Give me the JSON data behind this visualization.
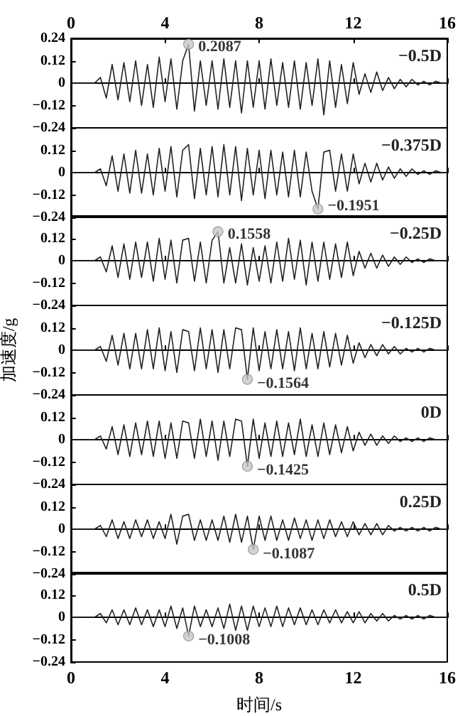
{
  "chart_data": [
    {
      "type": "line",
      "marker": "none",
      "tick_labels": "y",
      "xlim": [
        0,
        16
      ],
      "xticks": [
        0,
        4,
        8,
        12,
        16
      ],
      "x2lim": [
        0,
        16
      ],
      "x2ticks": [
        0,
        4,
        8,
        12,
        16
      ],
      "ylim": [
        -0.24,
        0.24
      ],
      "yticks": [
        {
          "value": -0.24,
          "label": "−0.24"
        },
        {
          "value": -0.12,
          "label": "−0.12"
        },
        0,
        0.12,
        0.24
      ],
      "x": [
        0,
        0.25,
        0.5,
        0.75,
        1,
        1.25,
        1.5,
        1.75,
        2,
        2.25,
        2.5,
        2.75,
        3,
        3.25,
        3.5,
        3.75,
        4,
        4.25,
        4.5,
        4.75,
        5,
        5.25,
        5.5,
        5.75,
        6,
        6.25,
        6.5,
        6.75,
        7,
        7.25,
        7.5,
        7.75,
        8,
        8.25,
        8.5,
        8.75,
        9,
        9.25,
        9.5,
        9.75,
        10,
        10.25,
        10.5,
        10.75,
        11,
        11.25,
        11.5,
        11.75,
        12,
        12.25,
        12.5,
        12.75,
        13,
        13.25,
        13.5,
        13.75,
        14,
        14.25,
        14.5,
        14.75,
        15,
        15.25,
        15.5,
        15.75,
        16
      ],
      "series": [
        {
          "name": "−0.5D",
          "color": "#222222",
          "values": [
            0,
            0,
            0,
            0,
            0,
            0.03,
            -0.08,
            0.1,
            -0.09,
            0.11,
            -0.1,
            0.12,
            -0.12,
            0.1,
            -0.13,
            0.14,
            -0.1,
            0.13,
            -0.14,
            0.12,
            0.2087,
            -0.15,
            0.12,
            -0.12,
            0.12,
            -0.14,
            0.13,
            -0.13,
            0.12,
            -0.16,
            0.12,
            -0.13,
            0.12,
            -0.14,
            0.13,
            -0.12,
            0.11,
            -0.13,
            0.12,
            -0.14,
            0.11,
            -0.12,
            0.13,
            -0.17,
            0.12,
            -0.13,
            0.1,
            -0.11,
            0.11,
            -0.06,
            0.05,
            -0.05,
            0.06,
            -0.04,
            0.03,
            -0.03,
            0.02,
            -0.02,
            0.02,
            -0.01,
            0.01,
            -0.01,
            0.01,
            0,
            0
          ]
        }
      ],
      "annotations": [
        {
          "text": "0.2087",
          "x": 5,
          "y": 0.2087
        }
      ]
    },
    {
      "type": "line",
      "marker": "none",
      "tick_labels": "y",
      "xlim": [
        0,
        16
      ],
      "xticks": [
        0,
        4,
        8,
        12,
        16
      ],
      "ylim": [
        -0.24,
        0.24
      ],
      "yticks": [
        {
          "value": -0.24,
          "label": "−0.24"
        },
        {
          "value": -0.12,
          "label": "−0.12"
        },
        0,
        0.12,
        {
          "value": 0.24,
          "label": null
        }
      ],
      "x": [
        0,
        0.25,
        0.5,
        0.75,
        1,
        1.25,
        1.5,
        1.75,
        2,
        2.25,
        2.5,
        2.75,
        3,
        3.25,
        3.5,
        3.75,
        4,
        4.25,
        4.5,
        4.75,
        5,
        5.25,
        5.5,
        5.75,
        6,
        6.25,
        6.5,
        6.75,
        7,
        7.25,
        7.5,
        7.75,
        8,
        8.25,
        8.5,
        8.75,
        9,
        9.25,
        9.5,
        9.75,
        10,
        10.25,
        10.5,
        10.75,
        11,
        11.25,
        11.5,
        11.75,
        12,
        12.25,
        12.5,
        12.75,
        13,
        13.25,
        13.5,
        13.75,
        14,
        14.25,
        14.5,
        14.75,
        15,
        15.25,
        15.5,
        15.75,
        16
      ],
      "series": [
        {
          "name": "−0.375D",
          "color": "#222222",
          "values": [
            0,
            0,
            0,
            0,
            0,
            0.02,
            -0.07,
            0.09,
            -0.1,
            0.1,
            -0.11,
            0.12,
            -0.11,
            0.1,
            -0.12,
            0.13,
            -0.1,
            0.14,
            -0.13,
            0.12,
            0.15,
            -0.14,
            0.13,
            -0.12,
            0.14,
            -0.13,
            0.15,
            -0.12,
            0.14,
            -0.15,
            0.13,
            -0.12,
            0.12,
            -0.14,
            0.12,
            -0.12,
            0.11,
            -0.13,
            0.12,
            -0.13,
            0.11,
            -0.1,
            -0.1951,
            0.11,
            0.12,
            -0.1,
            0.1,
            -0.1,
            0.1,
            -0.06,
            0.05,
            -0.05,
            0.05,
            -0.04,
            0.03,
            -0.03,
            0.02,
            -0.02,
            0.02,
            -0.01,
            0.01,
            -0.01,
            0.01,
            0,
            0
          ]
        }
      ],
      "annotations": [
        {
          "text": "−0.1951",
          "x": 10.5,
          "y": -0.1951
        }
      ]
    },
    {
      "type": "line",
      "marker": "none",
      "tick_labels": "y",
      "xlim": [
        0,
        16
      ],
      "xticks": [
        0,
        4,
        8,
        12,
        16
      ],
      "ylim": [
        -0.24,
        0.24
      ],
      "yticks": [
        {
          "value": -0.24,
          "label": "−0.24"
        },
        {
          "value": -0.12,
          "label": "−0.12"
        },
        0,
        0.12,
        {
          "value": 0.24,
          "label": null
        }
      ],
      "x": [
        0,
        0.25,
        0.5,
        0.75,
        1,
        1.25,
        1.5,
        1.75,
        2,
        2.25,
        2.5,
        2.75,
        3,
        3.25,
        3.5,
        3.75,
        4,
        4.25,
        4.5,
        4.75,
        5,
        5.25,
        5.5,
        5.75,
        6,
        6.25,
        6.5,
        6.75,
        7,
        7.25,
        7.5,
        7.75,
        8,
        8.25,
        8.5,
        8.75,
        9,
        9.25,
        9.5,
        9.75,
        10,
        10.25,
        10.5,
        10.75,
        11,
        11.25,
        11.5,
        11.75,
        12,
        12.25,
        12.5,
        12.75,
        13,
        13.25,
        13.5,
        13.75,
        14,
        14.25,
        14.5,
        14.75,
        15,
        15.25,
        15.5,
        15.75,
        16
      ],
      "series": [
        {
          "name": "−0.25D",
          "color": "#222222",
          "values": [
            0,
            0,
            0,
            0,
            0,
            0.02,
            -0.06,
            0.08,
            -0.09,
            0.09,
            -0.1,
            0.1,
            -0.09,
            0.1,
            -0.11,
            0.12,
            -0.1,
            0.11,
            -0.12,
            0.11,
            0.12,
            -0.11,
            0.1,
            -0.12,
            0.11,
            0.1558,
            -0.12,
            0.07,
            -0.12,
            0.09,
            -0.13,
            0.07,
            -0.11,
            0.08,
            -0.12,
            0.1,
            -0.11,
            0.12,
            -0.1,
            0.11,
            -0.13,
            0.1,
            -0.11,
            0.1,
            -0.1,
            0.09,
            -0.09,
            0.1,
            -0.08,
            0.05,
            -0.04,
            0.04,
            -0.04,
            0.03,
            -0.03,
            0.02,
            -0.02,
            0.02,
            -0.01,
            0.01,
            -0.01,
            0.01,
            0,
            0,
            0
          ]
        }
      ],
      "annotations": [
        {
          "text": "0.1558",
          "x": 6.25,
          "y": 0.1558
        }
      ]
    },
    {
      "type": "line",
      "marker": "none",
      "tick_labels": "y",
      "ylabel": "加速度/g",
      "xlim": [
        0,
        16
      ],
      "xticks": [
        0,
        4,
        8,
        12,
        16
      ],
      "ylim": [
        -0.24,
        0.24
      ],
      "yticks": [
        {
          "value": -0.24,
          "label": "−0.24"
        },
        {
          "value": -0.12,
          "label": "−0.12"
        },
        0,
        0.12,
        {
          "value": 0.24,
          "label": null
        }
      ],
      "x": [
        0,
        0.25,
        0.5,
        0.75,
        1,
        1.25,
        1.5,
        1.75,
        2,
        2.25,
        2.5,
        2.75,
        3,
        3.25,
        3.5,
        3.75,
        4,
        4.25,
        4.5,
        4.75,
        5,
        5.25,
        5.5,
        5.75,
        6,
        6.25,
        6.5,
        6.75,
        7,
        7.25,
        7.5,
        7.75,
        8,
        8.25,
        8.5,
        8.75,
        9,
        9.25,
        9.5,
        9.75,
        10,
        10.25,
        10.5,
        10.75,
        11,
        11.25,
        11.5,
        11.75,
        12,
        12.25,
        12.5,
        12.75,
        13,
        13.25,
        13.5,
        13.75,
        14,
        14.25,
        14.5,
        14.75,
        15,
        15.25,
        15.5,
        15.75,
        16
      ],
      "series": [
        {
          "name": "−0.125D",
          "color": "#222222",
          "values": [
            0,
            0,
            0,
            0,
            0,
            0.02,
            -0.06,
            0.08,
            -0.08,
            0.09,
            -0.1,
            0.09,
            -0.1,
            0.11,
            -0.1,
            0.12,
            -0.11,
            0.1,
            -0.12,
            0.11,
            0.1,
            -0.11,
            0.12,
            -0.1,
            0.11,
            -0.12,
            0.11,
            -0.1,
            0.12,
            0.11,
            -0.1564,
            0.12,
            -0.11,
            0.1,
            -0.1,
            0.11,
            -0.1,
            0.1,
            -0.11,
            0.12,
            -0.1,
            0.09,
            -0.1,
            0.1,
            -0.09,
            0.09,
            -0.08,
            0.08,
            -0.07,
            0.04,
            -0.04,
            0.03,
            -0.03,
            0.03,
            -0.02,
            0.02,
            -0.02,
            0.01,
            -0.01,
            0.01,
            -0.01,
            0.01,
            0,
            0,
            0
          ]
        }
      ],
      "annotations": [
        {
          "text": "−0.1564",
          "x": 7.5,
          "y": -0.1564
        }
      ]
    },
    {
      "type": "line",
      "marker": "none",
      "tick_labels": "y",
      "xlim": [
        0,
        16
      ],
      "xticks": [
        0,
        4,
        8,
        12,
        16
      ],
      "ylim": [
        -0.24,
        0.24
      ],
      "yticks": [
        {
          "value": -0.24,
          "label": "−0.24"
        },
        {
          "value": -0.12,
          "label": "−0.12"
        },
        0,
        0.12,
        {
          "value": 0.24,
          "label": null
        }
      ],
      "x": [
        0,
        0.25,
        0.5,
        0.75,
        1,
        1.25,
        1.5,
        1.75,
        2,
        2.25,
        2.5,
        2.75,
        3,
        3.25,
        3.5,
        3.75,
        4,
        4.25,
        4.5,
        4.75,
        5,
        5.25,
        5.5,
        5.75,
        6,
        6.25,
        6.5,
        6.75,
        7,
        7.25,
        7.5,
        7.75,
        8,
        8.25,
        8.5,
        8.75,
        9,
        9.25,
        9.5,
        9.75,
        10,
        10.25,
        10.5,
        10.75,
        11,
        11.25,
        11.5,
        11.75,
        12,
        12.25,
        12.5,
        12.75,
        13,
        13.25,
        13.5,
        13.75,
        14,
        14.25,
        14.5,
        14.75,
        15,
        15.25,
        15.5,
        15.75,
        16
      ],
      "series": [
        {
          "name": "0D",
          "color": "#222222",
          "values": [
            0,
            0,
            0,
            0,
            0,
            0.02,
            -0.05,
            0.07,
            -0.08,
            0.08,
            -0.09,
            0.09,
            -0.08,
            0.1,
            -0.09,
            0.1,
            -0.1,
            0.09,
            -0.1,
            0.1,
            0.09,
            -0.1,
            0.11,
            -0.09,
            0.1,
            -0.11,
            0.1,
            -0.09,
            0.11,
            0.1,
            -0.1425,
            0.11,
            -0.1,
            0.09,
            -0.09,
            0.1,
            -0.09,
            0.09,
            -0.08,
            0.11,
            -0.09,
            0.08,
            -0.09,
            0.09,
            -0.08,
            0.08,
            -0.07,
            0.07,
            -0.06,
            0.04,
            -0.03,
            0.03,
            -0.03,
            0.02,
            -0.02,
            0.02,
            -0.01,
            0.01,
            -0.01,
            0.01,
            -0.01,
            0.01,
            0,
            0,
            0
          ]
        }
      ],
      "annotations": [
        {
          "text": "−0.1425",
          "x": 7.5,
          "y": -0.1425
        }
      ]
    },
    {
      "type": "line",
      "marker": "none",
      "tick_labels": "y",
      "xlim": [
        0,
        16
      ],
      "xticks": [
        0,
        4,
        8,
        12,
        16
      ],
      "ylim": [
        -0.24,
        0.24
      ],
      "yticks": [
        {
          "value": -0.24,
          "label": "−0.24"
        },
        {
          "value": -0.12,
          "label": "−0.12"
        },
        0,
        0.12,
        {
          "value": 0.24,
          "label": null
        }
      ],
      "x": [
        0,
        0.25,
        0.5,
        0.75,
        1,
        1.25,
        1.5,
        1.75,
        2,
        2.25,
        2.5,
        2.75,
        3,
        3.25,
        3.5,
        3.75,
        4,
        4.25,
        4.5,
        4.75,
        5,
        5.25,
        5.5,
        5.75,
        6,
        6.25,
        6.5,
        6.75,
        7,
        7.25,
        7.5,
        7.75,
        8,
        8.25,
        8.5,
        8.75,
        9,
        9.25,
        9.5,
        9.75,
        10,
        10.25,
        10.5,
        10.75,
        11,
        11.25,
        11.5,
        11.75,
        12,
        12.25,
        12.5,
        12.75,
        13,
        13.25,
        13.5,
        13.75,
        14,
        14.25,
        14.5,
        14.75,
        15,
        15.25,
        15.5,
        15.75,
        16
      ],
      "series": [
        {
          "name": "0.25D",
          "color": "#222222",
          "values": [
            0,
            0,
            0,
            0,
            0,
            0.02,
            -0.04,
            0.05,
            -0.05,
            0.04,
            -0.05,
            0.05,
            -0.04,
            0.05,
            -0.05,
            0.04,
            -0.05,
            0.08,
            -0.08,
            0.07,
            0.08,
            -0.06,
            0.05,
            -0.06,
            0.05,
            -0.06,
            0.07,
            -0.07,
            0.08,
            -0.07,
            0.07,
            -0.1087,
            0.07,
            -0.06,
            0.07,
            -0.06,
            0.05,
            -0.06,
            0.06,
            -0.05,
            0.05,
            -0.06,
            0.05,
            -0.05,
            0.05,
            -0.04,
            0.04,
            -0.04,
            0.04,
            -0.03,
            0.03,
            -0.03,
            0.03,
            -0.03,
            0.02,
            -0.01,
            0.01,
            -0.01,
            0.01,
            -0.01,
            0.01,
            -0.01,
            0.01,
            0,
            0
          ]
        }
      ],
      "annotations": [
        {
          "text": "−0.1087",
          "x": 7.75,
          "y": -0.1087
        }
      ]
    },
    {
      "type": "line",
      "marker": "none",
      "xlabel": "时间/s",
      "xlim": [
        0,
        16
      ],
      "xticks": [
        0,
        4,
        8,
        12,
        16
      ],
      "ylim": [
        -0.24,
        0.24
      ],
      "yticks": [
        {
          "value": -0.24,
          "label": "−0.24"
        },
        {
          "value": -0.12,
          "label": "−0.12"
        },
        0,
        0.12,
        {
          "value": 0.24,
          "label": null
        }
      ],
      "x": [
        0,
        0.25,
        0.5,
        0.75,
        1,
        1.25,
        1.5,
        1.75,
        2,
        2.25,
        2.5,
        2.75,
        3,
        3.25,
        3.5,
        3.75,
        4,
        4.25,
        4.5,
        4.75,
        5,
        5.25,
        5.5,
        5.75,
        6,
        6.25,
        6.5,
        6.75,
        7,
        7.25,
        7.5,
        7.75,
        8,
        8.25,
        8.5,
        8.75,
        9,
        9.25,
        9.5,
        9.75,
        10,
        10.25,
        10.5,
        10.75,
        11,
        11.25,
        11.5,
        11.75,
        12,
        12.25,
        12.5,
        12.75,
        13,
        13.25,
        13.5,
        13.75,
        14,
        14.25,
        14.5,
        14.75,
        15,
        15.25,
        15.5,
        15.75,
        16
      ],
      "series": [
        {
          "name": "0.5D",
          "color": "#222222",
          "values": [
            0,
            0,
            0,
            0,
            0,
            0.02,
            -0.03,
            0.04,
            -0.04,
            0.04,
            -0.04,
            0.05,
            -0.04,
            0.04,
            -0.05,
            0.04,
            -0.05,
            0.06,
            -0.06,
            0.05,
            -0.1008,
            0.06,
            -0.05,
            0.04,
            -0.05,
            0.05,
            -0.06,
            0.07,
            -0.07,
            0.06,
            -0.07,
            0.06,
            -0.05,
            0.05,
            -0.05,
            0.06,
            -0.05,
            0.05,
            -0.04,
            0.05,
            -0.04,
            0.04,
            -0.04,
            0.04,
            -0.03,
            0.04,
            -0.03,
            0.03,
            -0.03,
            0.03,
            -0.03,
            0.02,
            -0.02,
            0.02,
            -0.02,
            0.01,
            -0.01,
            0.01,
            -0.01,
            0.01,
            -0.01,
            0.01,
            0,
            0,
            0
          ]
        }
      ],
      "annotations": [
        {
          "text": "−0.1008",
          "x": 5,
          "y": -0.1008
        }
      ]
    }
  ]
}
